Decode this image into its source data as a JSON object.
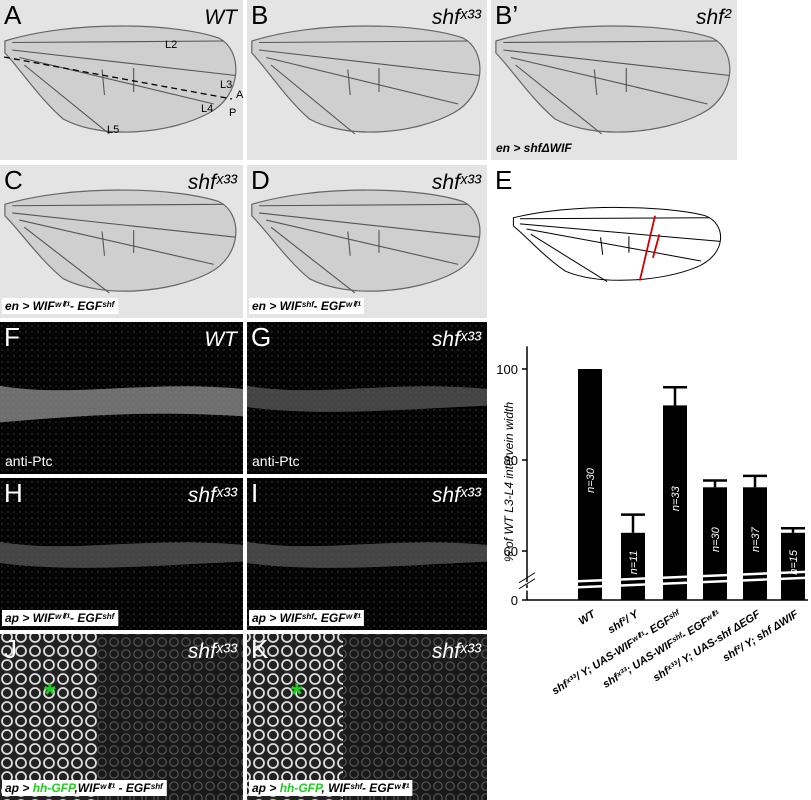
{
  "panels": [
    {
      "letter": "A",
      "top": "WT"
    },
    {
      "letter": "B",
      "top": "shfˣ³³"
    },
    {
      "letter": "B’",
      "top": "shf²",
      "bottom": "en > shfΔWIF"
    },
    {
      "letter": "C",
      "top": "shfˣ³³",
      "bottom": "en > WIFʷⁱᶠ¹- EGFˢʰᶠ"
    },
    {
      "letter": "D",
      "top": "shfˣ³³",
      "bottom": "en > WIFˢʰᶠ- EGFʷⁱᶠ¹"
    },
    {
      "letter": "E"
    },
    {
      "letter": "F",
      "top": "WT",
      "bottom": "anti-Ptc"
    },
    {
      "letter": "G",
      "top": "shfˣ³³",
      "bottom": "anti-Ptc"
    },
    {
      "letter": "H",
      "top": "shfˣ³³",
      "bottom": "ap > WIFʷⁱᶠ¹- EGFˢʰᶠ"
    },
    {
      "letter": "I",
      "top": "shfˣ³³",
      "bottom": "ap > WIFˢʰᶠ- EGFʷⁱᶠ¹"
    },
    {
      "letter": "J",
      "top": "shfˣ³³",
      "marker": "*",
      "bottom_parts": [
        "ap > ",
        "hh-GFP",
        ",WIFʷⁱᶠ¹ - EGFˢʰᶠ"
      ]
    },
    {
      "letter": "K",
      "top": "shfˣ³³",
      "marker": "*",
      "bottom_parts": [
        "ap > ",
        "hh-GFP",
        ", WIFˢʰᶠ- EGFʷⁱᶠ¹"
      ]
    }
  ],
  "wing_a_labels": [
    "L2",
    "L3",
    "L4",
    "L5",
    "A",
    "P"
  ],
  "chart_data": {
    "type": "bar",
    "y_label": "% of WT  L3-L4 intervein width",
    "categories": [
      "WT",
      "shf²/ Y",
      "shfˣ³³/ Y; UAS-WIFʷⁱᶠ¹- EGFˢʰᶠ",
      "shfˣ³³; UAS-WIFˢʰᶠ- EGFʷⁱᶠ¹",
      "shfˣ³³/ Y; UAS-shf ΔEGF",
      "shf²/ Y; shf ΔWIF"
    ],
    "values": [
      100,
      64,
      92,
      74,
      74,
      64
    ],
    "errors": [
      0,
      4,
      4,
      1.5,
      2.5,
      1
    ],
    "n_labels": [
      "n=30",
      "n=11",
      "n=33",
      "n=30",
      "n=37",
      "n=15"
    ],
    "color": "#000000",
    "ylim": [
      0,
      105
    ],
    "yticks": [
      0,
      60,
      80,
      100
    ],
    "axis_break": [
      0,
      55
    ]
  }
}
